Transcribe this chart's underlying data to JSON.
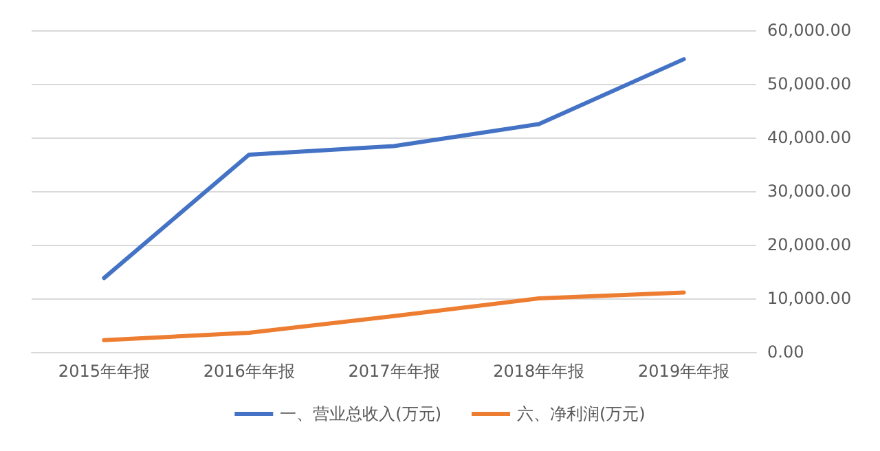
{
  "chart_data": {
    "type": "line",
    "categories": [
      "2015年年报",
      "2016年年报",
      "2017年年报",
      "2018年年报",
      "2019年年报"
    ],
    "series": [
      {
        "name": "一、营业总收入(万元)",
        "color": "#4472c4",
        "values": [
          13800,
          36800,
          38400,
          42500,
          54600
        ]
      },
      {
        "name": "六、净利润(万元)",
        "color": "#ed7d31",
        "values": [
          2200,
          3600,
          6700,
          10000,
          11100
        ]
      }
    ],
    "ylim": [
      0,
      60000
    ],
    "yticks": [
      {
        "value": 0,
        "label": "0.00"
      },
      {
        "value": 10000,
        "label": "10,000.00"
      },
      {
        "value": 20000,
        "label": "20,000.00"
      },
      {
        "value": 30000,
        "label": "30,000.00"
      },
      {
        "value": 40000,
        "label": "40,000.00"
      },
      {
        "value": 50000,
        "label": "50,000.00"
      },
      {
        "value": 60000,
        "label": "60,000.00"
      }
    ],
    "grid": "y",
    "legend": "bottom",
    "marker": "none",
    "line_style": "solid"
  }
}
